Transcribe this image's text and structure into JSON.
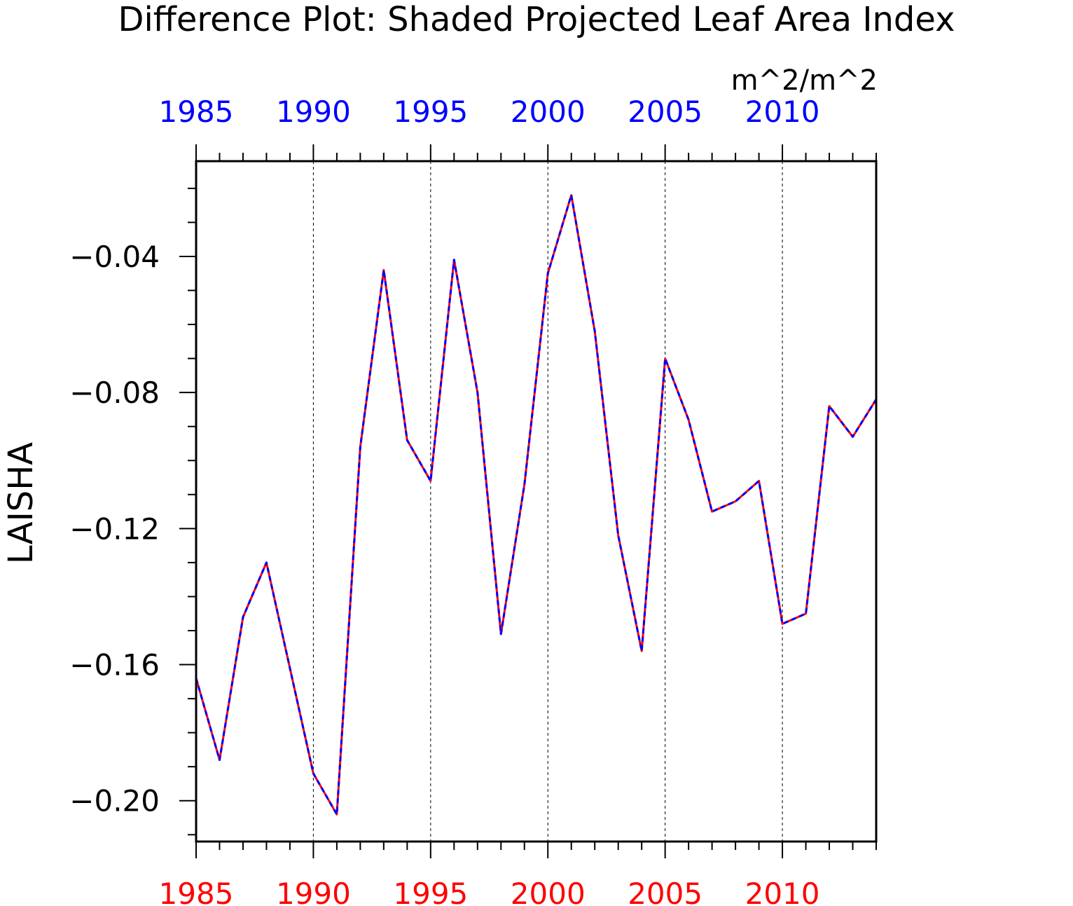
{
  "chart_data": {
    "type": "line",
    "title": "Difference Plot: Shaded Projected Leaf Area Index",
    "units": "m^2/m^2",
    "ylabel": "LAISHA",
    "xlim": [
      1985,
      2014
    ],
    "ylim": [
      -0.212,
      -0.012
    ],
    "x_ticks": [
      1985,
      1990,
      1995,
      2000,
      2005,
      2010
    ],
    "x_tick_labels": [
      "1985",
      "1990",
      "1995",
      "2000",
      "2005",
      "2010"
    ],
    "y_ticks": [
      -0.2,
      -0.16,
      -0.12,
      -0.08,
      -0.04
    ],
    "y_tick_labels": [
      "−0.20",
      "−0.16",
      "−0.12",
      "−0.08",
      "−0.04"
    ],
    "x_minor_step": 1,
    "y_minor_step": 0.01,
    "grid": "vertical dashed at labeled x ticks",
    "colors": {
      "top_axis_labels": "#0000ff",
      "bottom_axis_labels": "#ff0000",
      "frame": "#000000"
    },
    "x": [
      1985,
      1986,
      1987,
      1988,
      1989,
      1990,
      1991,
      1992,
      1993,
      1994,
      1995,
      1996,
      1997,
      1998,
      1999,
      2000,
      2001,
      2002,
      2003,
      2004,
      2005,
      2006,
      2007,
      2008,
      2009,
      2010,
      2011,
      2012,
      2013,
      2014
    ],
    "series": [
      {
        "color": "#ff0000",
        "style": "solid",
        "values": [
          -0.164,
          -0.188,
          -0.146,
          -0.13,
          -0.161,
          -0.192,
          -0.204,
          -0.096,
          -0.044,
          -0.094,
          -0.106,
          -0.041,
          -0.08,
          -0.151,
          -0.107,
          -0.045,
          -0.022,
          -0.062,
          -0.122,
          -0.156,
          -0.07,
          -0.088,
          -0.115,
          -0.112,
          -0.106,
          -0.148,
          -0.145,
          -0.084,
          -0.093,
          -0.082
        ]
      },
      {
        "color": "#0000ff",
        "style": "dashed",
        "values": [
          -0.164,
          -0.188,
          -0.146,
          -0.13,
          -0.161,
          -0.192,
          -0.204,
          -0.096,
          -0.044,
          -0.094,
          -0.106,
          -0.041,
          -0.08,
          -0.151,
          -0.107,
          -0.045,
          -0.022,
          -0.062,
          -0.122,
          -0.156,
          -0.07,
          -0.088,
          -0.115,
          -0.112,
          -0.106,
          -0.148,
          -0.145,
          -0.084,
          -0.093,
          -0.082
        ]
      }
    ]
  }
}
